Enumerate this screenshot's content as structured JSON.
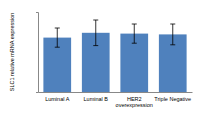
{
  "chart_data": {
    "type": "bar",
    "y_label": "SLC1 relative mRNA expression",
    "categories": [
      "Luminal A",
      "Luminal B",
      "HER2 overexpression",
      "Triple Negative"
    ],
    "values": [
      0.68,
      0.74,
      0.73,
      0.72
    ],
    "errors": [
      0.12,
      0.16,
      0.12,
      0.13
    ],
    "color": "#4f81bd",
    "ylim": [
      0,
      1
    ],
    "tick_labels": "x"
  }
}
